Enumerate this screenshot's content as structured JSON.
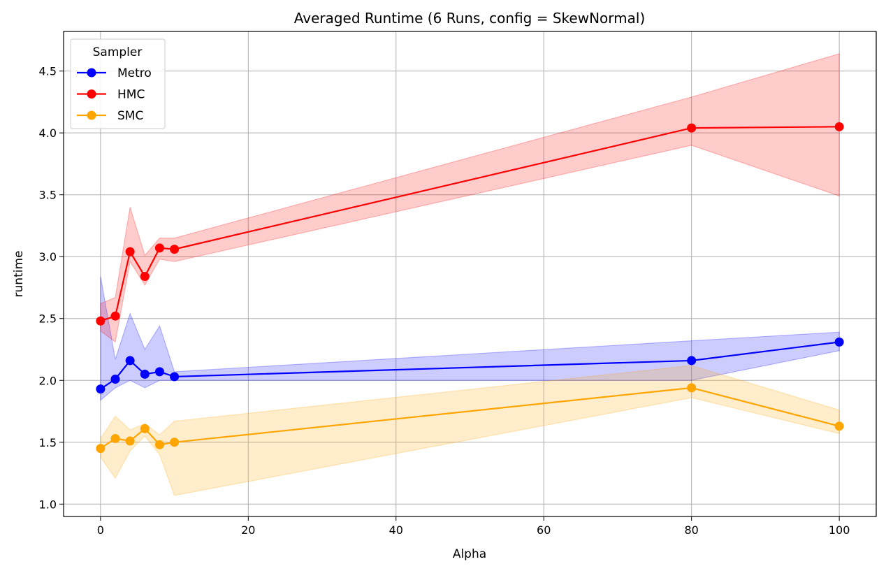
{
  "chart_data": {
    "type": "line",
    "title": "Averaged Runtime (6 Runs, config = SkewNormal)",
    "xlabel": "Alpha",
    "ylabel": "runtime",
    "xlim": [
      -5,
      105
    ],
    "ylim": [
      0.9,
      4.82
    ],
    "x_ticks": [
      0,
      20,
      40,
      60,
      80,
      100
    ],
    "y_ticks": [
      1.0,
      1.5,
      2.0,
      2.5,
      3.0,
      3.5,
      4.0,
      4.5
    ],
    "grid": true,
    "legend": {
      "title": "Sampler",
      "position": "top-left"
    },
    "x": [
      0,
      2,
      4,
      6,
      8,
      10,
      80,
      100
    ],
    "series": [
      {
        "name": "Metro",
        "color": "#0000ff",
        "values": [
          1.93,
          2.01,
          2.16,
          2.05,
          2.07,
          2.03,
          2.16,
          2.31
        ],
        "band_lower": [
          1.84,
          1.94,
          2.0,
          1.94,
          2.0,
          2.0,
          2.0,
          2.24
        ],
        "band_upper": [
          2.84,
          2.17,
          2.54,
          2.25,
          2.44,
          2.07,
          2.32,
          2.39
        ]
      },
      {
        "name": "HMC",
        "color": "#ff0000",
        "values": [
          2.48,
          2.52,
          3.04,
          2.84,
          3.07,
          3.06,
          4.04,
          4.05
        ],
        "band_lower": [
          2.4,
          2.31,
          2.96,
          2.77,
          2.98,
          2.96,
          3.9,
          3.49
        ],
        "band_upper": [
          2.62,
          2.67,
          3.4,
          3.01,
          3.15,
          3.15,
          4.29,
          4.64
        ]
      },
      {
        "name": "SMC",
        "color": "#ffa500",
        "values": [
          1.45,
          1.53,
          1.51,
          1.61,
          1.48,
          1.5,
          1.94,
          1.63
        ],
        "band_lower": [
          1.38,
          1.21,
          1.43,
          1.55,
          1.4,
          1.07,
          1.86,
          1.57
        ],
        "band_upper": [
          1.53,
          1.71,
          1.6,
          1.65,
          1.56,
          1.67,
          2.12,
          1.76
        ]
      }
    ]
  }
}
